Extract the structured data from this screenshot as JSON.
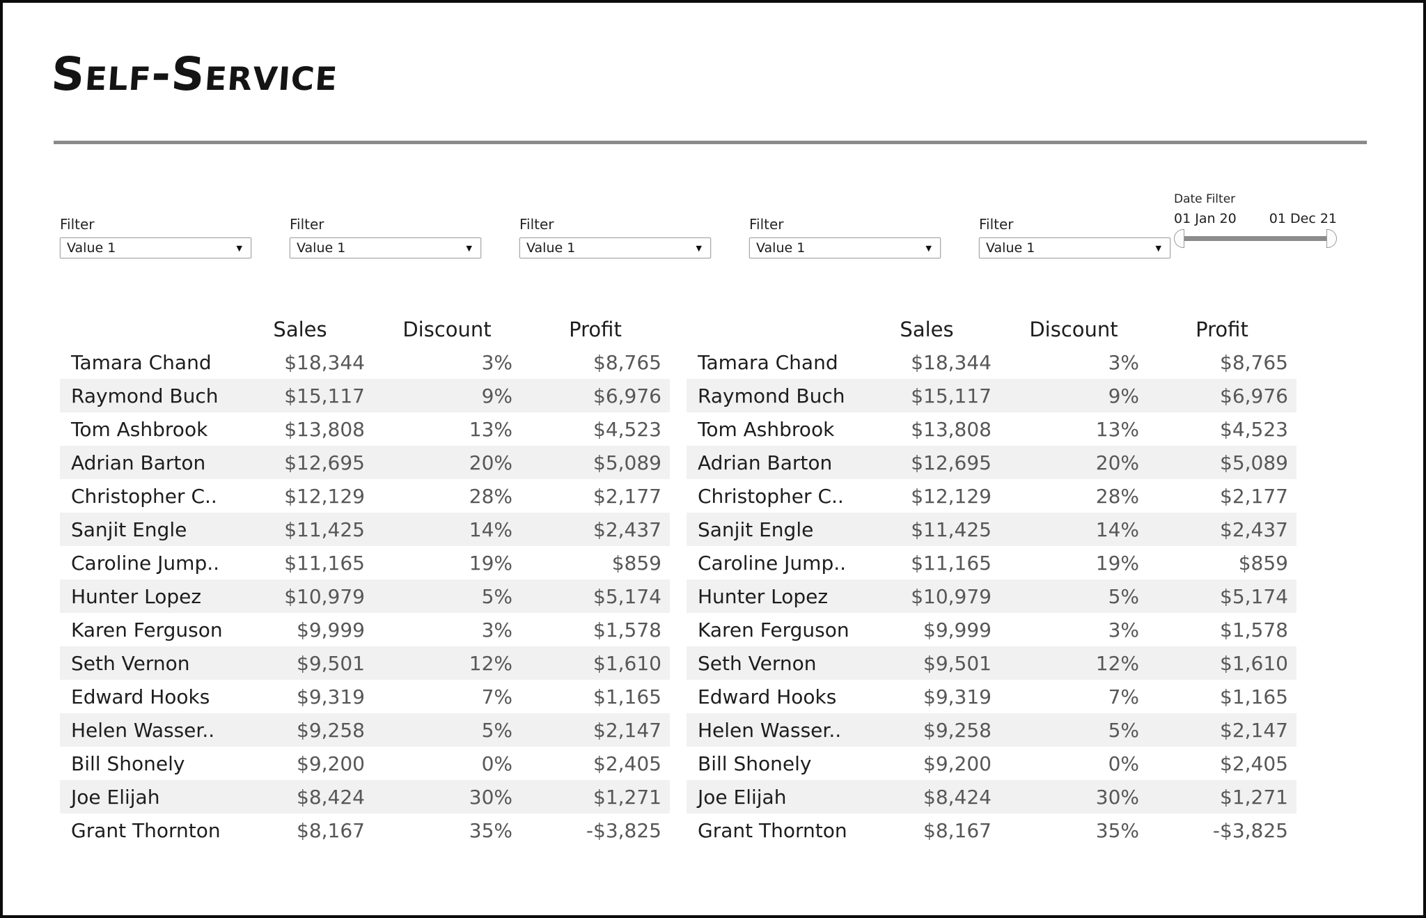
{
  "title": "Self-Service",
  "filters": [
    {
      "label": "Filter",
      "value": "Value 1"
    },
    {
      "label": "Filter",
      "value": "Value 1"
    },
    {
      "label": "Filter",
      "value": "Value 1"
    },
    {
      "label": "Filter",
      "value": "Value 1"
    },
    {
      "label": "Filter",
      "value": "Value 1"
    }
  ],
  "date_filter": {
    "label": "Date Filter",
    "start": "01 Jan 20",
    "end": "01 Dec 21"
  },
  "table": {
    "headers": {
      "sales": "Sales",
      "discount": "Discount",
      "profit": "Profit"
    },
    "rows": [
      {
        "name": "Tamara Chand",
        "sales": "$18,344",
        "discount": "3%",
        "profit": "$8,765"
      },
      {
        "name": "Raymond Buch",
        "sales": "$15,117",
        "discount": "9%",
        "profit": "$6,976"
      },
      {
        "name": "Tom Ashbrook",
        "sales": "$13,808",
        "discount": "13%",
        "profit": "$4,523"
      },
      {
        "name": "Adrian Barton",
        "sales": "$12,695",
        "discount": "20%",
        "profit": "$5,089"
      },
      {
        "name": "Christopher C..",
        "sales": "$12,129",
        "discount": "28%",
        "profit": "$2,177"
      },
      {
        "name": "Sanjit Engle",
        "sales": "$11,425",
        "discount": "14%",
        "profit": "$2,437"
      },
      {
        "name": "Caroline Jump..",
        "sales": "$11,165",
        "discount": "19%",
        "profit": "$859"
      },
      {
        "name": "Hunter Lopez",
        "sales": "$10,979",
        "discount": "5%",
        "profit": "$5,174"
      },
      {
        "name": "Karen Ferguson",
        "sales": "$9,999",
        "discount": "3%",
        "profit": "$1,578"
      },
      {
        "name": "Seth Vernon",
        "sales": "$9,501",
        "discount": "12%",
        "profit": "$1,610"
      },
      {
        "name": "Edward Hooks",
        "sales": "$9,319",
        "discount": "7%",
        "profit": "$1,165"
      },
      {
        "name": "Helen Wasser..",
        "sales": "$9,258",
        "discount": "5%",
        "profit": "$2,147"
      },
      {
        "name": "Bill Shonely",
        "sales": "$9,200",
        "discount": "0%",
        "profit": "$2,405"
      },
      {
        "name": "Joe Elijah",
        "sales": "$8,424",
        "discount": "30%",
        "profit": "$1,271"
      },
      {
        "name": "Grant Thornton",
        "sales": "$8,167",
        "discount": "35%",
        "profit": "-$3,825"
      }
    ]
  },
  "icons": {
    "dropdown_caret": "chevron-down-icon"
  },
  "colors": {
    "primary_text": "#1d1d1d",
    "value_text": "#575757",
    "row_stripe": "#f1f1f1",
    "divider": "#8a8a8a",
    "frame_border": "#0c0c0c"
  }
}
